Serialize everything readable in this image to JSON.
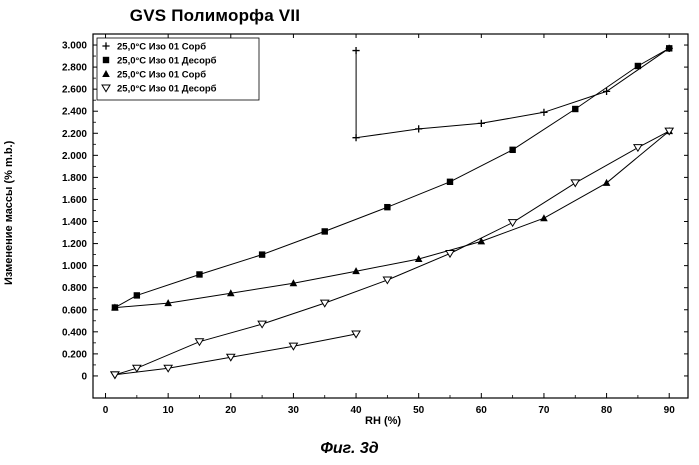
{
  "caption": "Фиг. 3д",
  "chart_data": {
    "type": "line",
    "title": "GVS Полиморфа VII",
    "xlabel": "RH (%)",
    "ylabel": "Изменение массы (% m.b.)",
    "xlim": [
      -2,
      93
    ],
    "ylim": [
      -0.2,
      3.1
    ],
    "x_ticks": [
      0,
      10,
      20,
      30,
      40,
      50,
      60,
      70,
      80,
      90
    ],
    "y_ticks": [
      0,
      0.2,
      0.4,
      0.6,
      0.8,
      1.0,
      1.2,
      1.4,
      1.6,
      1.8,
      2.0,
      2.2,
      2.4,
      2.6,
      2.8,
      3.0
    ],
    "y_tick_labels": [
      "0",
      "0.200",
      "0.400",
      "0.600",
      "0.800",
      "1.000",
      "1.200",
      "1.400",
      "1.600",
      "1.800",
      "2.000",
      "2.200",
      "2.400",
      "2.600",
      "2.800",
      "3.000"
    ],
    "legend_position": "top-left",
    "series": [
      {
        "name": "25,0°C Изо 01 Сорб",
        "marker": "plus",
        "x": [
          40,
          40,
          50,
          60,
          70,
          80,
          90
        ],
        "y": [
          2.95,
          2.16,
          2.24,
          2.29,
          2.39,
          2.58,
          2.97
        ]
      },
      {
        "name": "25,0°C Изо 01 Десорб",
        "marker": "square",
        "x": [
          90,
          85,
          75,
          65,
          55,
          45,
          35,
          25,
          15,
          5,
          1.5
        ],
        "y": [
          2.97,
          2.81,
          2.42,
          2.05,
          1.76,
          1.53,
          1.31,
          1.1,
          0.92,
          0.73,
          0.62
        ]
      },
      {
        "name": "25,0°C Изо 01 Сорб",
        "marker": "triangle-up",
        "x": [
          1.5,
          10,
          20,
          30,
          40,
          50,
          60,
          70,
          80,
          90
        ],
        "y": [
          0.62,
          0.66,
          0.75,
          0.84,
          0.95,
          1.06,
          1.22,
          1.43,
          1.75,
          2.22
        ]
      },
      {
        "name": "25,0°C Изо 01 Десорб",
        "marker": "triangle-down",
        "x": [
          90,
          85,
          75,
          65,
          55,
          45,
          35,
          25,
          15,
          5,
          1.5
        ],
        "y": [
          2.22,
          2.07,
          1.75,
          1.39,
          1.11,
          0.87,
          0.66,
          0.47,
          0.31,
          0.07,
          0.01
        ]
      },
      {
        "name": "",
        "marker": "triangle-down",
        "x": [
          1.5,
          10,
          20,
          30,
          40
        ],
        "y": [
          0.01,
          0.07,
          0.17,
          0.27,
          0.38
        ]
      }
    ]
  }
}
